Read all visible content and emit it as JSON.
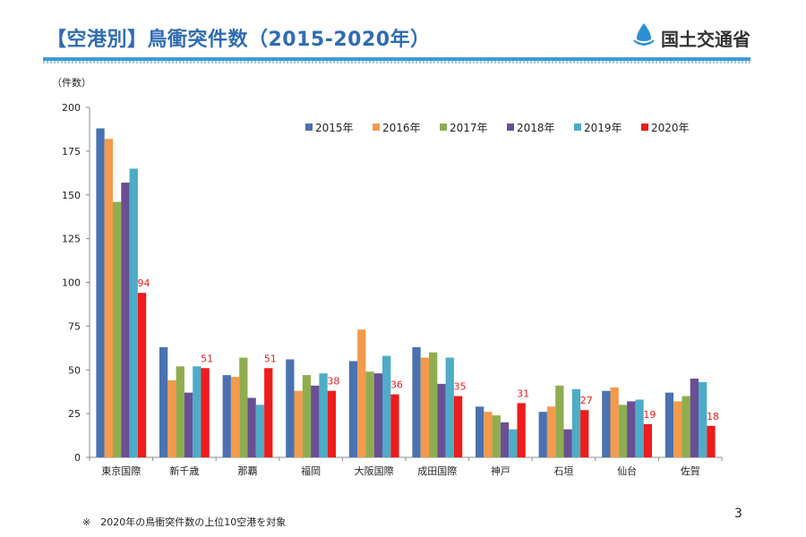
{
  "header": {
    "title": "【空港別】鳥衝突件数（2015-2020年）",
    "logo_text": "国土交通省"
  },
  "footer": {
    "note": "※　2020年の鳥衝突件数の上位10空港を対象",
    "page_number": "3"
  },
  "colors": {
    "title": "#2f6cb3",
    "rule": "#3f9ad6",
    "series": [
      "#4a72b0",
      "#f39a4c",
      "#8fad4e",
      "#6a4f94",
      "#4dacc7",
      "#ee1c1c"
    ],
    "label_2020": "#ee1c1c"
  },
  "chart_data": {
    "type": "bar",
    "title": "",
    "xlabel": "",
    "ylabel": "（件数）",
    "ylim": [
      0,
      200
    ],
    "yticks": [
      0,
      25,
      50,
      75,
      100,
      125,
      150,
      175,
      200
    ],
    "legend_position": "top-right",
    "grid": false,
    "categories": [
      "東京国際",
      "新千歳",
      "那覇",
      "福岡",
      "大阪国際",
      "成田国際",
      "神戸",
      "石垣",
      "仙台",
      "佐賀"
    ],
    "series": [
      {
        "name": "2015年",
        "values": [
          188,
          63,
          47,
          56,
          55,
          63,
          29,
          26,
          38,
          37
        ]
      },
      {
        "name": "2016年",
        "values": [
          182,
          44,
          46,
          38,
          73,
          57,
          26,
          29,
          40,
          32
        ]
      },
      {
        "name": "2017年",
        "values": [
          146,
          52,
          57,
          47,
          49,
          60,
          24,
          41,
          30,
          35
        ]
      },
      {
        "name": "2018年",
        "values": [
          157,
          37,
          34,
          41,
          48,
          42,
          20,
          16,
          32,
          45
        ]
      },
      {
        "name": "2019年",
        "values": [
          165,
          52,
          30,
          48,
          58,
          57,
          16,
          39,
          33,
          43
        ]
      },
      {
        "name": "2020年",
        "values": [
          94,
          51,
          51,
          38,
          36,
          35,
          31,
          27,
          19,
          18
        ]
      }
    ],
    "data_labels_series": "2020年"
  }
}
